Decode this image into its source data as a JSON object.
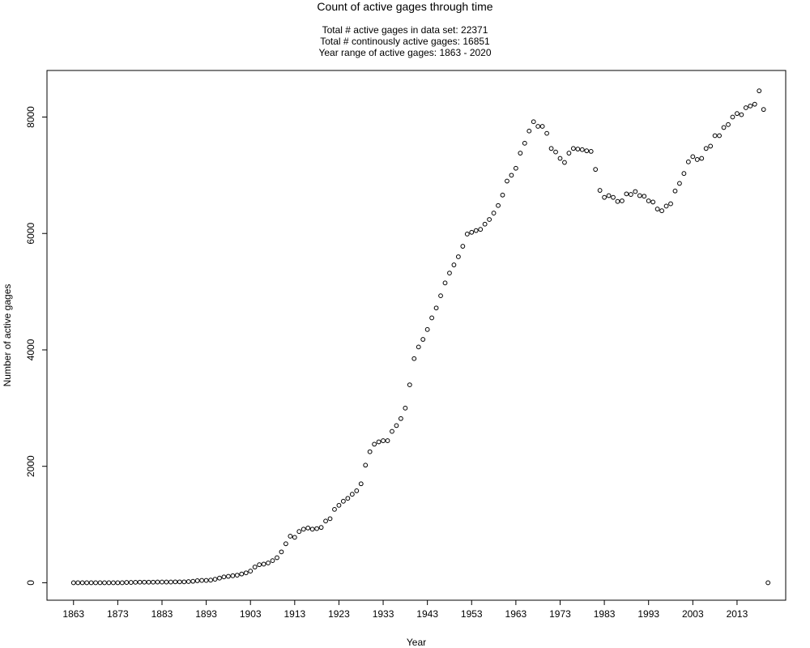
{
  "chart_data": {
    "type": "scatter",
    "title": "Count of active gages through time",
    "subtitles": [
      "Total # active gages in data set: 22371",
      "Total # continously active gages: 16851",
      "Year range of active gages: 1863 - 2020"
    ],
    "xlabel": "Year",
    "ylabel": "Number of active gages",
    "xlim": [
      1857,
      2024
    ],
    "ylim": [
      -300,
      8800
    ],
    "xticks": [
      1863,
      1873,
      1883,
      1893,
      1903,
      1913,
      1923,
      1933,
      1943,
      1953,
      1963,
      1973,
      1983,
      1993,
      2003,
      2013
    ],
    "yticks": [
      0,
      2000,
      4000,
      6000,
      8000
    ],
    "grid": false,
    "legend": "none",
    "point_color": "#000000",
    "x": [
      1863,
      1864,
      1865,
      1866,
      1867,
      1868,
      1869,
      1870,
      1871,
      1872,
      1873,
      1874,
      1875,
      1876,
      1877,
      1878,
      1879,
      1880,
      1881,
      1882,
      1883,
      1884,
      1885,
      1886,
      1887,
      1888,
      1889,
      1890,
      1891,
      1892,
      1893,
      1894,
      1895,
      1896,
      1897,
      1898,
      1899,
      1900,
      1901,
      1902,
      1903,
      1904,
      1905,
      1906,
      1907,
      1908,
      1909,
      1910,
      1911,
      1912,
      1913,
      1914,
      1915,
      1916,
      1917,
      1918,
      1919,
      1920,
      1921,
      1922,
      1923,
      1924,
      1925,
      1926,
      1927,
      1928,
      1929,
      1930,
      1931,
      1932,
      1933,
      1934,
      1935,
      1936,
      1937,
      1938,
      1939,
      1940,
      1941,
      1942,
      1943,
      1944,
      1945,
      1946,
      1947,
      1948,
      1949,
      1950,
      1951,
      1952,
      1953,
      1954,
      1955,
      1956,
      1957,
      1958,
      1959,
      1960,
      1961,
      1962,
      1963,
      1964,
      1965,
      1966,
      1967,
      1968,
      1969,
      1970,
      1971,
      1972,
      1973,
      1974,
      1975,
      1976,
      1977,
      1978,
      1979,
      1980,
      1981,
      1982,
      1983,
      1984,
      1985,
      1986,
      1987,
      1988,
      1989,
      1990,
      1991,
      1992,
      1993,
      1994,
      1995,
      1996,
      1997,
      1998,
      1999,
      2000,
      2001,
      2002,
      2003,
      2004,
      2005,
      2006,
      2007,
      2008,
      2009,
      2010,
      2011,
      2012,
      2013,
      2014,
      2015,
      2016,
      2017,
      2018,
      2019,
      2020
    ],
    "y": [
      0,
      0,
      0,
      0,
      0,
      0,
      0,
      0,
      0,
      0,
      0,
      0,
      5,
      5,
      8,
      10,
      10,
      10,
      10,
      12,
      12,
      12,
      12,
      15,
      15,
      15,
      20,
      25,
      35,
      40,
      40,
      45,
      60,
      80,
      100,
      110,
      120,
      130,
      150,
      170,
      200,
      270,
      310,
      320,
      340,
      380,
      430,
      530,
      670,
      800,
      780,
      880,
      920,
      940,
      920,
      930,
      950,
      1060,
      1100,
      1260,
      1330,
      1400,
      1450,
      1520,
      1580,
      1700,
      2020,
      2250,
      2380,
      2420,
      2440,
      2440,
      2600,
      2700,
      2820,
      3000,
      3400,
      3850,
      4050,
      4180,
      4350,
      4550,
      4720,
      4930,
      5150,
      5320,
      5460,
      5600,
      5780,
      5990,
      6020,
      6050,
      6070,
      6160,
      6240,
      6350,
      6480,
      6660,
      6900,
      7000,
      7120,
      7380,
      7550,
      7760,
      7920,
      7840,
      7840,
      7720,
      7460,
      7400,
      7290,
      7220,
      7380,
      7460,
      7450,
      7440,
      7420,
      7410,
      7100,
      6740,
      6620,
      6650,
      6620,
      6550,
      6560,
      6680,
      6670,
      6720,
      6650,
      6640,
      6560,
      6540,
      6420,
      6390,
      6470,
      6510,
      6730,
      6860,
      7030,
      7230,
      7320,
      7270,
      7290,
      7460,
      7500,
      7680,
      7680,
      7820,
      7870,
      8000,
      8060,
      8040,
      8160,
      8190,
      8220,
      8450,
      8130,
      0
    ]
  }
}
